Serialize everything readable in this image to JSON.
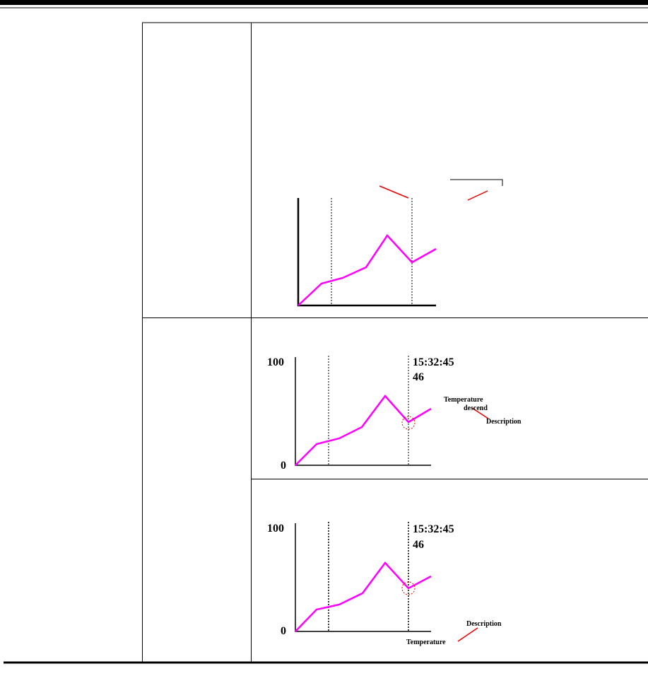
{
  "figures": [
    {
      "scale_max": 100,
      "scale_min": 0,
      "time": "15:32:45",
      "reading": 46,
      "annotation": [
        "Temperature",
        "descend"
      ],
      "label": "Description"
    },
    {
      "scale_max": 100,
      "scale_min": 0,
      "time": "15:32:45",
      "reading": 46,
      "annotation": [
        "Temperature"
      ],
      "label": "Description"
    }
  ]
}
